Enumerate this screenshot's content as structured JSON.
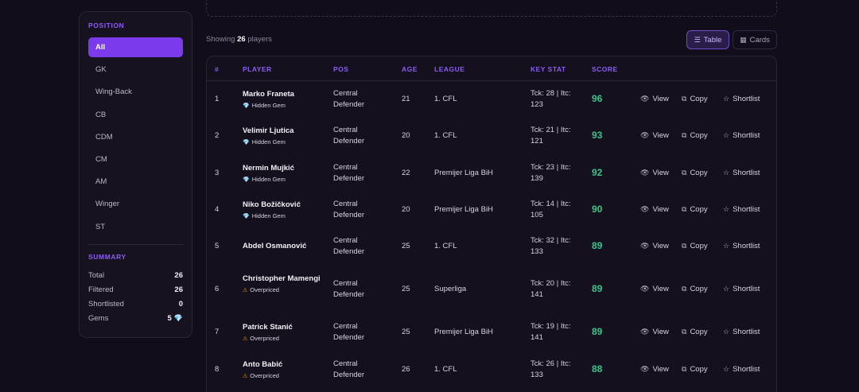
{
  "sidebar": {
    "position_title": "POSITION",
    "positions": [
      "All",
      "GK",
      "Wing-Back",
      "CB",
      "CDM",
      "CM",
      "AM",
      "Winger",
      "ST"
    ],
    "active_position": "All",
    "summary_title": "SUMMARY",
    "summary": [
      {
        "label": "Total",
        "value": "26"
      },
      {
        "label": "Filtered",
        "value": "26"
      },
      {
        "label": "Shortlisted",
        "value": "0"
      },
      {
        "label": "Gems",
        "value": "5"
      }
    ]
  },
  "toolbar": {
    "showing_prefix": "Showing",
    "showing_count": "26",
    "showing_suffix": "players",
    "table_label": "Table",
    "cards_label": "Cards"
  },
  "table": {
    "headers": [
      "#",
      "PLAYER",
      "POS",
      "AGE",
      "LEAGUE",
      "KEY STAT",
      "SCORE"
    ],
    "actions": {
      "view": "View",
      "copy": "Copy",
      "shortlist": "Shortlist"
    },
    "rows": [
      {
        "num": "1",
        "name": "Marko Franeta",
        "badge": "Hidden Gem",
        "badge_type": "gem",
        "pos": "Central Defender",
        "age": "21",
        "league": "1. CFL",
        "stat": "Tck: 28 | Itc: 123",
        "score": "96"
      },
      {
        "num": "2",
        "name": "Velimir Ljutica",
        "badge": "Hidden Gem",
        "badge_type": "gem",
        "pos": "Central Defender",
        "age": "20",
        "league": "1. CFL",
        "stat": "Tck: 21 | Itc: 121",
        "score": "93"
      },
      {
        "num": "3",
        "name": "Nermin Mujkić",
        "badge": "Hidden Gem",
        "badge_type": "gem",
        "pos": "Central Defender",
        "age": "22",
        "league": "Premijer Liga BiH",
        "stat": "Tck: 23 | Itc: 139",
        "score": "92"
      },
      {
        "num": "4",
        "name": "Niko Božičković",
        "badge": "Hidden Gem",
        "badge_type": "gem",
        "pos": "Central Defender",
        "age": "20",
        "league": "Premijer Liga BiH",
        "stat": "Tck: 14 | Itc: 105",
        "score": "90"
      },
      {
        "num": "5",
        "name": "Abdel Osmanović",
        "badge": "",
        "badge_type": "",
        "pos": "Central Defender",
        "age": "25",
        "league": "1. CFL",
        "stat": "Tck: 32 | Itc: 133",
        "score": "89"
      },
      {
        "num": "6",
        "name": "Christopher Mamengi",
        "badge": "Overpriced",
        "badge_type": "warn",
        "pos": "Central Defender",
        "age": "25",
        "league": "Superliga",
        "stat": "Tck: 20 | Itc: 141",
        "score": "89"
      },
      {
        "num": "7",
        "name": "Patrick Stanić",
        "badge": "Overpriced",
        "badge_type": "warn",
        "pos": "Central Defender",
        "age": "25",
        "league": "Premijer Liga BiH",
        "stat": "Tck: 19 | Itc: 141",
        "score": "89"
      },
      {
        "num": "8",
        "name": "Anto Babić",
        "badge": "Overpriced",
        "badge_type": "warn",
        "pos": "Central Defender",
        "age": "26",
        "league": "1. CFL",
        "stat": "Tck: 26 | Itc: 133",
        "score": "88"
      }
    ]
  },
  "colors": {
    "accent": "#7c3aed",
    "score": "#34c78a",
    "gem": "#22d3ee",
    "warning": "#f59e0b"
  },
  "icons": {
    "table": "list-icon",
    "cards": "grid-icon",
    "view": "eye-icon",
    "copy": "copy-icon",
    "shortlist": "star-icon",
    "gem": "gem-icon",
    "warning": "warning-icon"
  }
}
